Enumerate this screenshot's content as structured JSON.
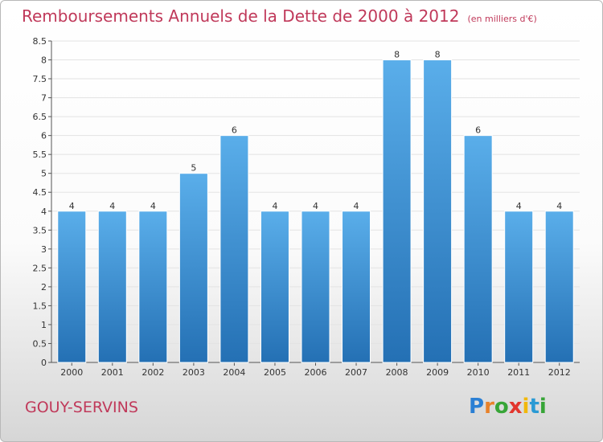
{
  "chart_data": {
    "type": "bar",
    "title": "Remboursements Annuels de la Dette de 2000 à 2012",
    "subtitle": "(en milliers d'€)",
    "xlabel": "",
    "ylabel": "",
    "categories": [
      "2000",
      "2001",
      "2002",
      "2003",
      "2004",
      "2005",
      "2006",
      "2007",
      "2008",
      "2009",
      "2010",
      "2011",
      "2012"
    ],
    "values": [
      4,
      4,
      4,
      5,
      6,
      4,
      4,
      4,
      8,
      8,
      6,
      4,
      4
    ],
    "ylim": [
      0,
      8.5
    ],
    "yticks": [
      "0",
      "0.5",
      "1",
      "1.5",
      "2",
      "2.5",
      "3",
      "3.5",
      "4",
      "4.5",
      "5",
      "5.5",
      "6",
      "6.5",
      "7",
      "7.5",
      "8",
      "8.5"
    ],
    "grid": true,
    "bar_color": "#3d8fd6"
  },
  "footer": {
    "commune": "GOUY-SERVINS",
    "logo_letters": [
      "P",
      "r",
      "o",
      "x",
      "i",
      "t",
      "i"
    ],
    "logo_colors": [
      "#2a7fd4",
      "#e8822a",
      "#37a537",
      "#e2362e",
      "#f1b80c",
      "#2a9ad4",
      "#37a537"
    ]
  }
}
